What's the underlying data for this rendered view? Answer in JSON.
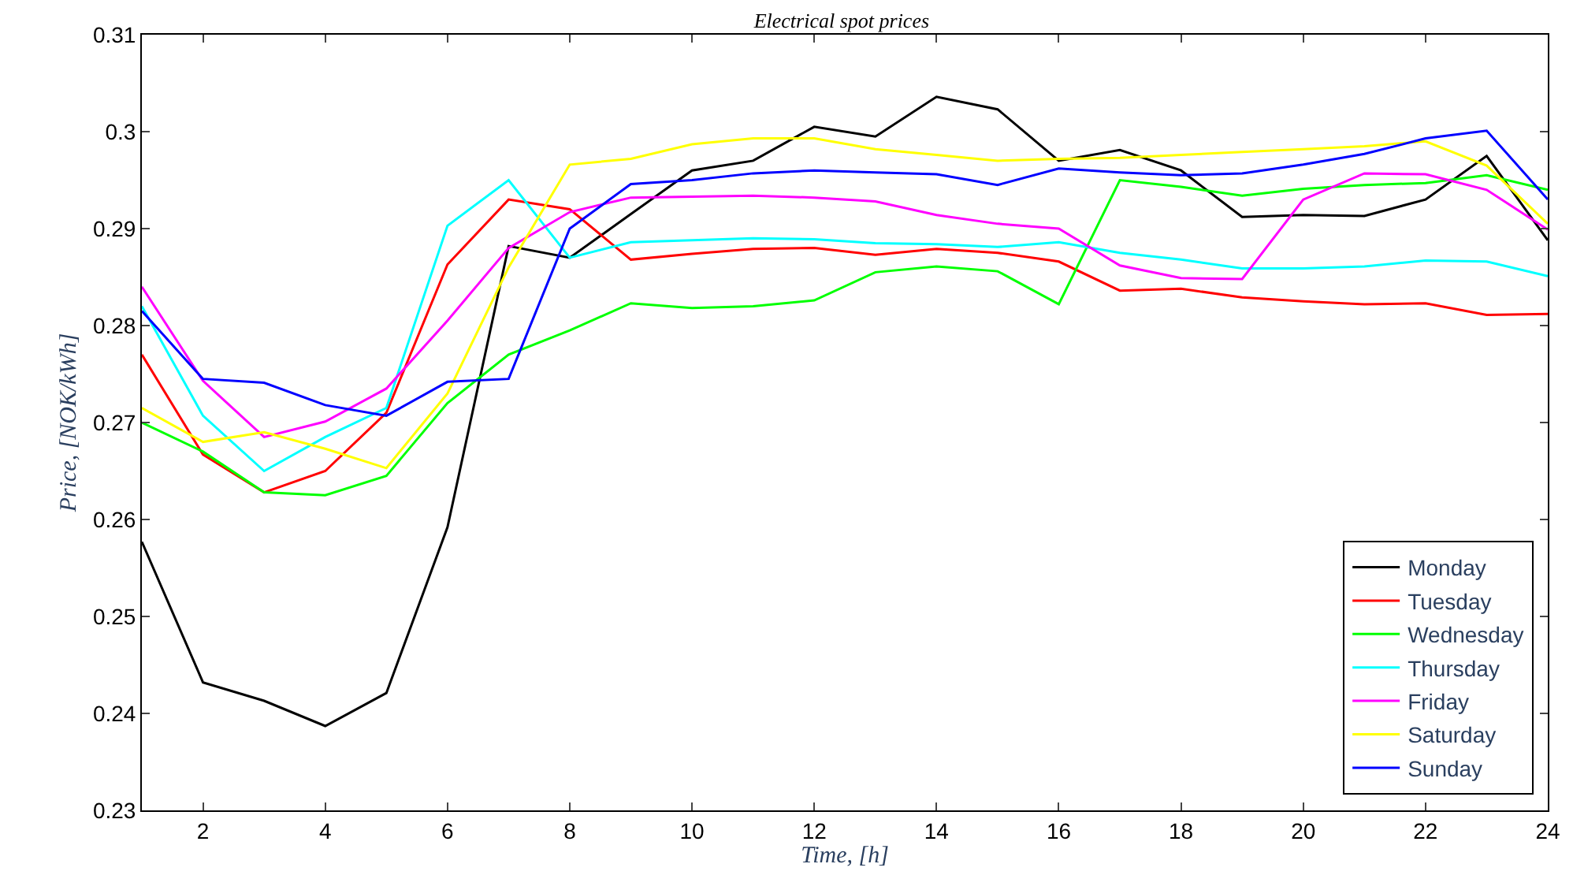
{
  "chart_data": {
    "type": "line",
    "title": "Electrical spot prices",
    "xlabel": "Time, [h]",
    "ylabel": "Price, [NOK/kWh]",
    "x": [
      1,
      2,
      3,
      4,
      5,
      6,
      7,
      8,
      9,
      10,
      11,
      12,
      13,
      14,
      15,
      16,
      17,
      18,
      19,
      20,
      21,
      22,
      23,
      24
    ],
    "xlim": [
      1,
      24
    ],
    "xticks": [
      2,
      4,
      6,
      8,
      10,
      12,
      14,
      16,
      18,
      20,
      22,
      24
    ],
    "ylim": [
      0.23,
      0.31
    ],
    "yticks": [
      {
        "value": 0.23,
        "label": "0.23"
      },
      {
        "value": 0.24,
        "label": "0.24"
      },
      {
        "value": 0.25,
        "label": "0.25"
      },
      {
        "value": 0.26,
        "label": "0.26"
      },
      {
        "value": 0.27,
        "label": "0.27"
      },
      {
        "value": 0.28,
        "label": "0.28"
      },
      {
        "value": 0.29,
        "label": "0.29"
      },
      {
        "value": 0.3,
        "label": "0.3"
      },
      {
        "value": 0.31,
        "label": "0.31"
      }
    ],
    "grid": false,
    "legend": "bottom right",
    "marker": "none",
    "line_style": "solid",
    "series": [
      {
        "name": "Monday",
        "color": "#000000",
        "values": [
          0.2577,
          0.2432,
          0.2413,
          0.2387,
          0.2421,
          0.2592,
          0.2882,
          0.287,
          0.2915,
          0.296,
          0.297,
          0.3005,
          0.2995,
          0.3036,
          0.3023,
          0.297,
          0.2981,
          0.296,
          0.2912,
          0.2914,
          0.2913,
          0.293,
          0.2975,
          0.2888
        ]
      },
      {
        "name": "Tuesday",
        "color": "#ff0000",
        "values": [
          0.277,
          0.2667,
          0.2628,
          0.265,
          0.271,
          0.2863,
          0.293,
          0.292,
          0.2868,
          0.2874,
          0.2879,
          0.288,
          0.2873,
          0.2879,
          0.2875,
          0.2866,
          0.2836,
          0.2838,
          0.2829,
          0.2825,
          0.2822,
          0.2823,
          0.2811,
          0.2812
        ]
      },
      {
        "name": "Wednesday",
        "color": "#00ff00",
        "values": [
          0.27,
          0.267,
          0.2628,
          0.2625,
          0.2645,
          0.272,
          0.277,
          0.2795,
          0.2823,
          0.2818,
          0.282,
          0.2826,
          0.2855,
          0.2861,
          0.2856,
          0.2822,
          0.295,
          0.2943,
          0.2934,
          0.2941,
          0.2945,
          0.2947,
          0.2955,
          0.294
        ]
      },
      {
        "name": "Thursday",
        "color": "#00ffff",
        "values": [
          0.282,
          0.2707,
          0.265,
          0.2685,
          0.2715,
          0.2903,
          0.295,
          0.287,
          0.2886,
          0.2888,
          0.289,
          0.2889,
          0.2885,
          0.2884,
          0.2881,
          0.2886,
          0.2875,
          0.2868,
          0.2859,
          0.2859,
          0.2861,
          0.2867,
          0.2866,
          0.2851
        ]
      },
      {
        "name": "Friday",
        "color": "#ff00ff",
        "values": [
          0.284,
          0.2743,
          0.2685,
          0.2701,
          0.2735,
          0.2805,
          0.288,
          0.2917,
          0.2932,
          0.2933,
          0.2934,
          0.2932,
          0.2928,
          0.2914,
          0.2905,
          0.29,
          0.2862,
          0.2849,
          0.2848,
          0.293,
          0.2957,
          0.2956,
          0.294,
          0.2899
        ]
      },
      {
        "name": "Saturday",
        "color": "#ffff00",
        "values": [
          0.2715,
          0.268,
          0.269,
          0.2673,
          0.2653,
          0.273,
          0.286,
          0.2966,
          0.2972,
          0.2987,
          0.2993,
          0.2993,
          0.2982,
          0.2976,
          0.297,
          0.2972,
          0.2973,
          0.2976,
          0.2979,
          0.2982,
          0.2985,
          0.299,
          0.2965,
          0.2905
        ]
      },
      {
        "name": "Sunday",
        "color": "#0000ff",
        "values": [
          0.2815,
          0.2745,
          0.2741,
          0.2718,
          0.2707,
          0.2742,
          0.2745,
          0.29,
          0.2946,
          0.295,
          0.2957,
          0.296,
          0.2958,
          0.2956,
          0.2945,
          0.2962,
          0.2958,
          0.2955,
          0.2957,
          0.2966,
          0.2977,
          0.2993,
          0.3001,
          0.293
        ]
      }
    ]
  }
}
